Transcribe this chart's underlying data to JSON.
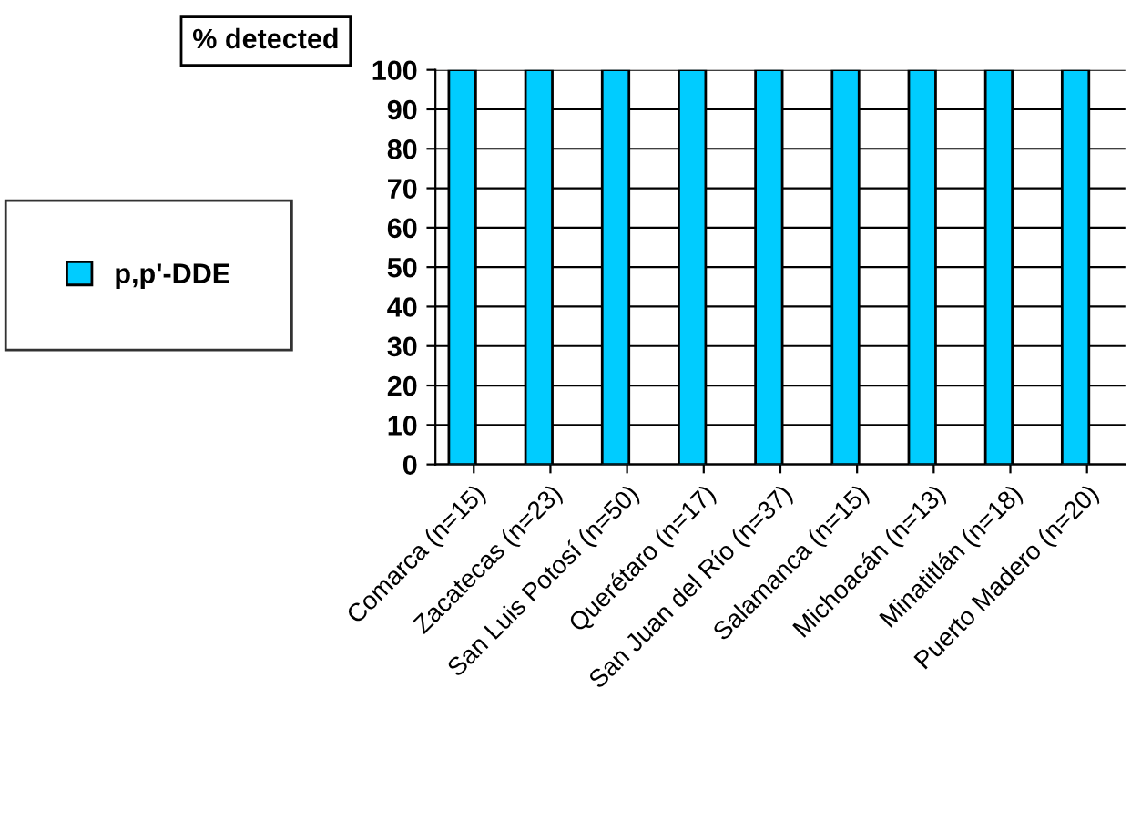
{
  "chart_data": {
    "type": "bar",
    "title": "% detected",
    "categories": [
      "Comarca (n=15)",
      "Zacatecas (n=23)",
      "San Luis Potosí (n=50)",
      "Querétaro (n=17)",
      "San Juan del Río (n=37)",
      "Salamanca (n=15)",
      "Michoacán (n=13)",
      "Minatitlán (n=18)",
      "Puerto Madero (n=20)"
    ],
    "series": [
      {
        "name": "p,p'-DDE",
        "color": "#00ccff",
        "values": [
          100,
          100,
          100,
          100,
          100,
          100,
          100,
          100,
          100
        ]
      }
    ],
    "ylim": [
      0,
      100
    ],
    "yticks": [
      0,
      10,
      20,
      30,
      40,
      50,
      60,
      70,
      80,
      90,
      100
    ],
    "grid": "y",
    "legend": "left"
  }
}
